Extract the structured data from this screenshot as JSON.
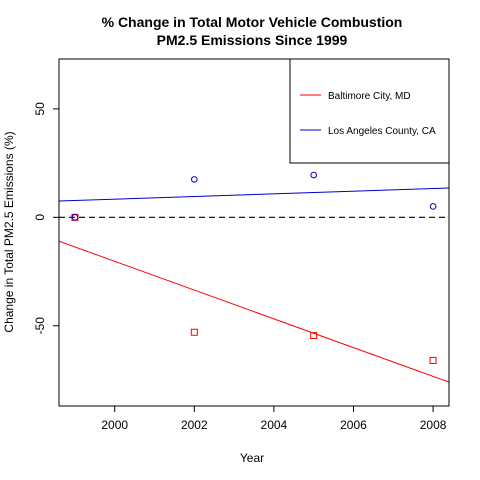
{
  "chart_data": {
    "type": "scatter",
    "title": [
      "% Change in Total Motor Vehicle Combustion",
      "PM2.5 Emissions Since 1999"
    ],
    "xlabel": "Year",
    "ylabel": "Change in Total PM2.5 Emissions (%)",
    "xlim": [
      1998.6,
      2008.4
    ],
    "ylim": [
      -87,
      73
    ],
    "x_ticks": [
      2000,
      2002,
      2004,
      2006,
      2008
    ],
    "x_tick_labels": [
      "2000",
      "2002",
      "2004",
      "2006",
      "2008"
    ],
    "y_ticks": [
      -50,
      0,
      50
    ],
    "y_tick_labels": [
      "-50",
      "0",
      "50"
    ],
    "reference_line": {
      "y": 0,
      "style": "dashed",
      "color": "#000000"
    },
    "legend_position": "top-right",
    "series": [
      {
        "name": "Baltimore City, MD",
        "color": "#ff0000",
        "marker": "square",
        "x": [
          1999,
          2002,
          2005,
          2008
        ],
        "y": [
          0,
          -53,
          -54.5,
          -66
        ],
        "trend": {
          "x": [
            1998.6,
            2008.4
          ],
          "y": [
            -11,
            -76
          ]
        }
      },
      {
        "name": "Los Angeles County, CA",
        "color": "#0000cc",
        "marker": "circle",
        "x": [
          1999,
          2002,
          2005,
          2008
        ],
        "y": [
          0,
          17.5,
          19.5,
          5
        ],
        "trend": {
          "x": [
            1998.6,
            2008.4
          ],
          "y": [
            7.5,
            13.5
          ]
        }
      }
    ]
  }
}
